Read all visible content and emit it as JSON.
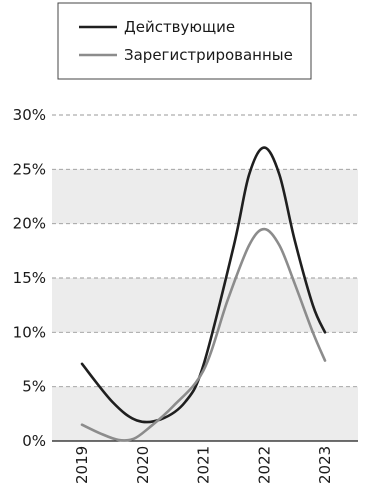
{
  "chart_data": {
    "type": "line",
    "title": "",
    "xlabel": "",
    "ylabel": "",
    "x": [
      "2019",
      "2020",
      "2021",
      "2022",
      "2023"
    ],
    "ylim": [
      0,
      30
    ],
    "y_ticks": [
      "0%",
      "5%",
      "10%",
      "15%",
      "20%",
      "25%",
      "30%"
    ],
    "y_tick_values": [
      0,
      5,
      10,
      15,
      20,
      25,
      30
    ],
    "grid": true,
    "alternating_bands": true,
    "legend_position": "top",
    "series": [
      {
        "name": "Действующие",
        "color": "#1f1f1f",
        "points": [
          [
            0,
            7.1
          ],
          [
            0.5,
            3.6
          ],
          [
            0.9,
            1.9
          ],
          [
            1.3,
            2.0
          ],
          [
            1.7,
            3.6
          ],
          [
            2.0,
            7.0
          ],
          [
            2.5,
            18.0
          ],
          [
            2.75,
            24.5
          ],
          [
            3.0,
            27.0
          ],
          [
            3.25,
            24.5
          ],
          [
            3.5,
            18.5
          ],
          [
            3.8,
            12.5
          ],
          [
            4.0,
            10.0
          ]
        ]
      },
      {
        "name": "Зарегистрированные",
        "color": "#8c8c8c",
        "points": [
          [
            0,
            1.5
          ],
          [
            0.3,
            0.7
          ],
          [
            0.6,
            0.1
          ],
          [
            0.85,
            0.2
          ],
          [
            1.1,
            1.2
          ],
          [
            1.5,
            3.2
          ],
          [
            2.0,
            6.5
          ],
          [
            2.4,
            13.0
          ],
          [
            2.75,
            18.0
          ],
          [
            3.0,
            19.5
          ],
          [
            3.25,
            18.0
          ],
          [
            3.5,
            14.5
          ],
          [
            3.8,
            10.0
          ],
          [
            4.0,
            7.4
          ]
        ]
      }
    ]
  }
}
